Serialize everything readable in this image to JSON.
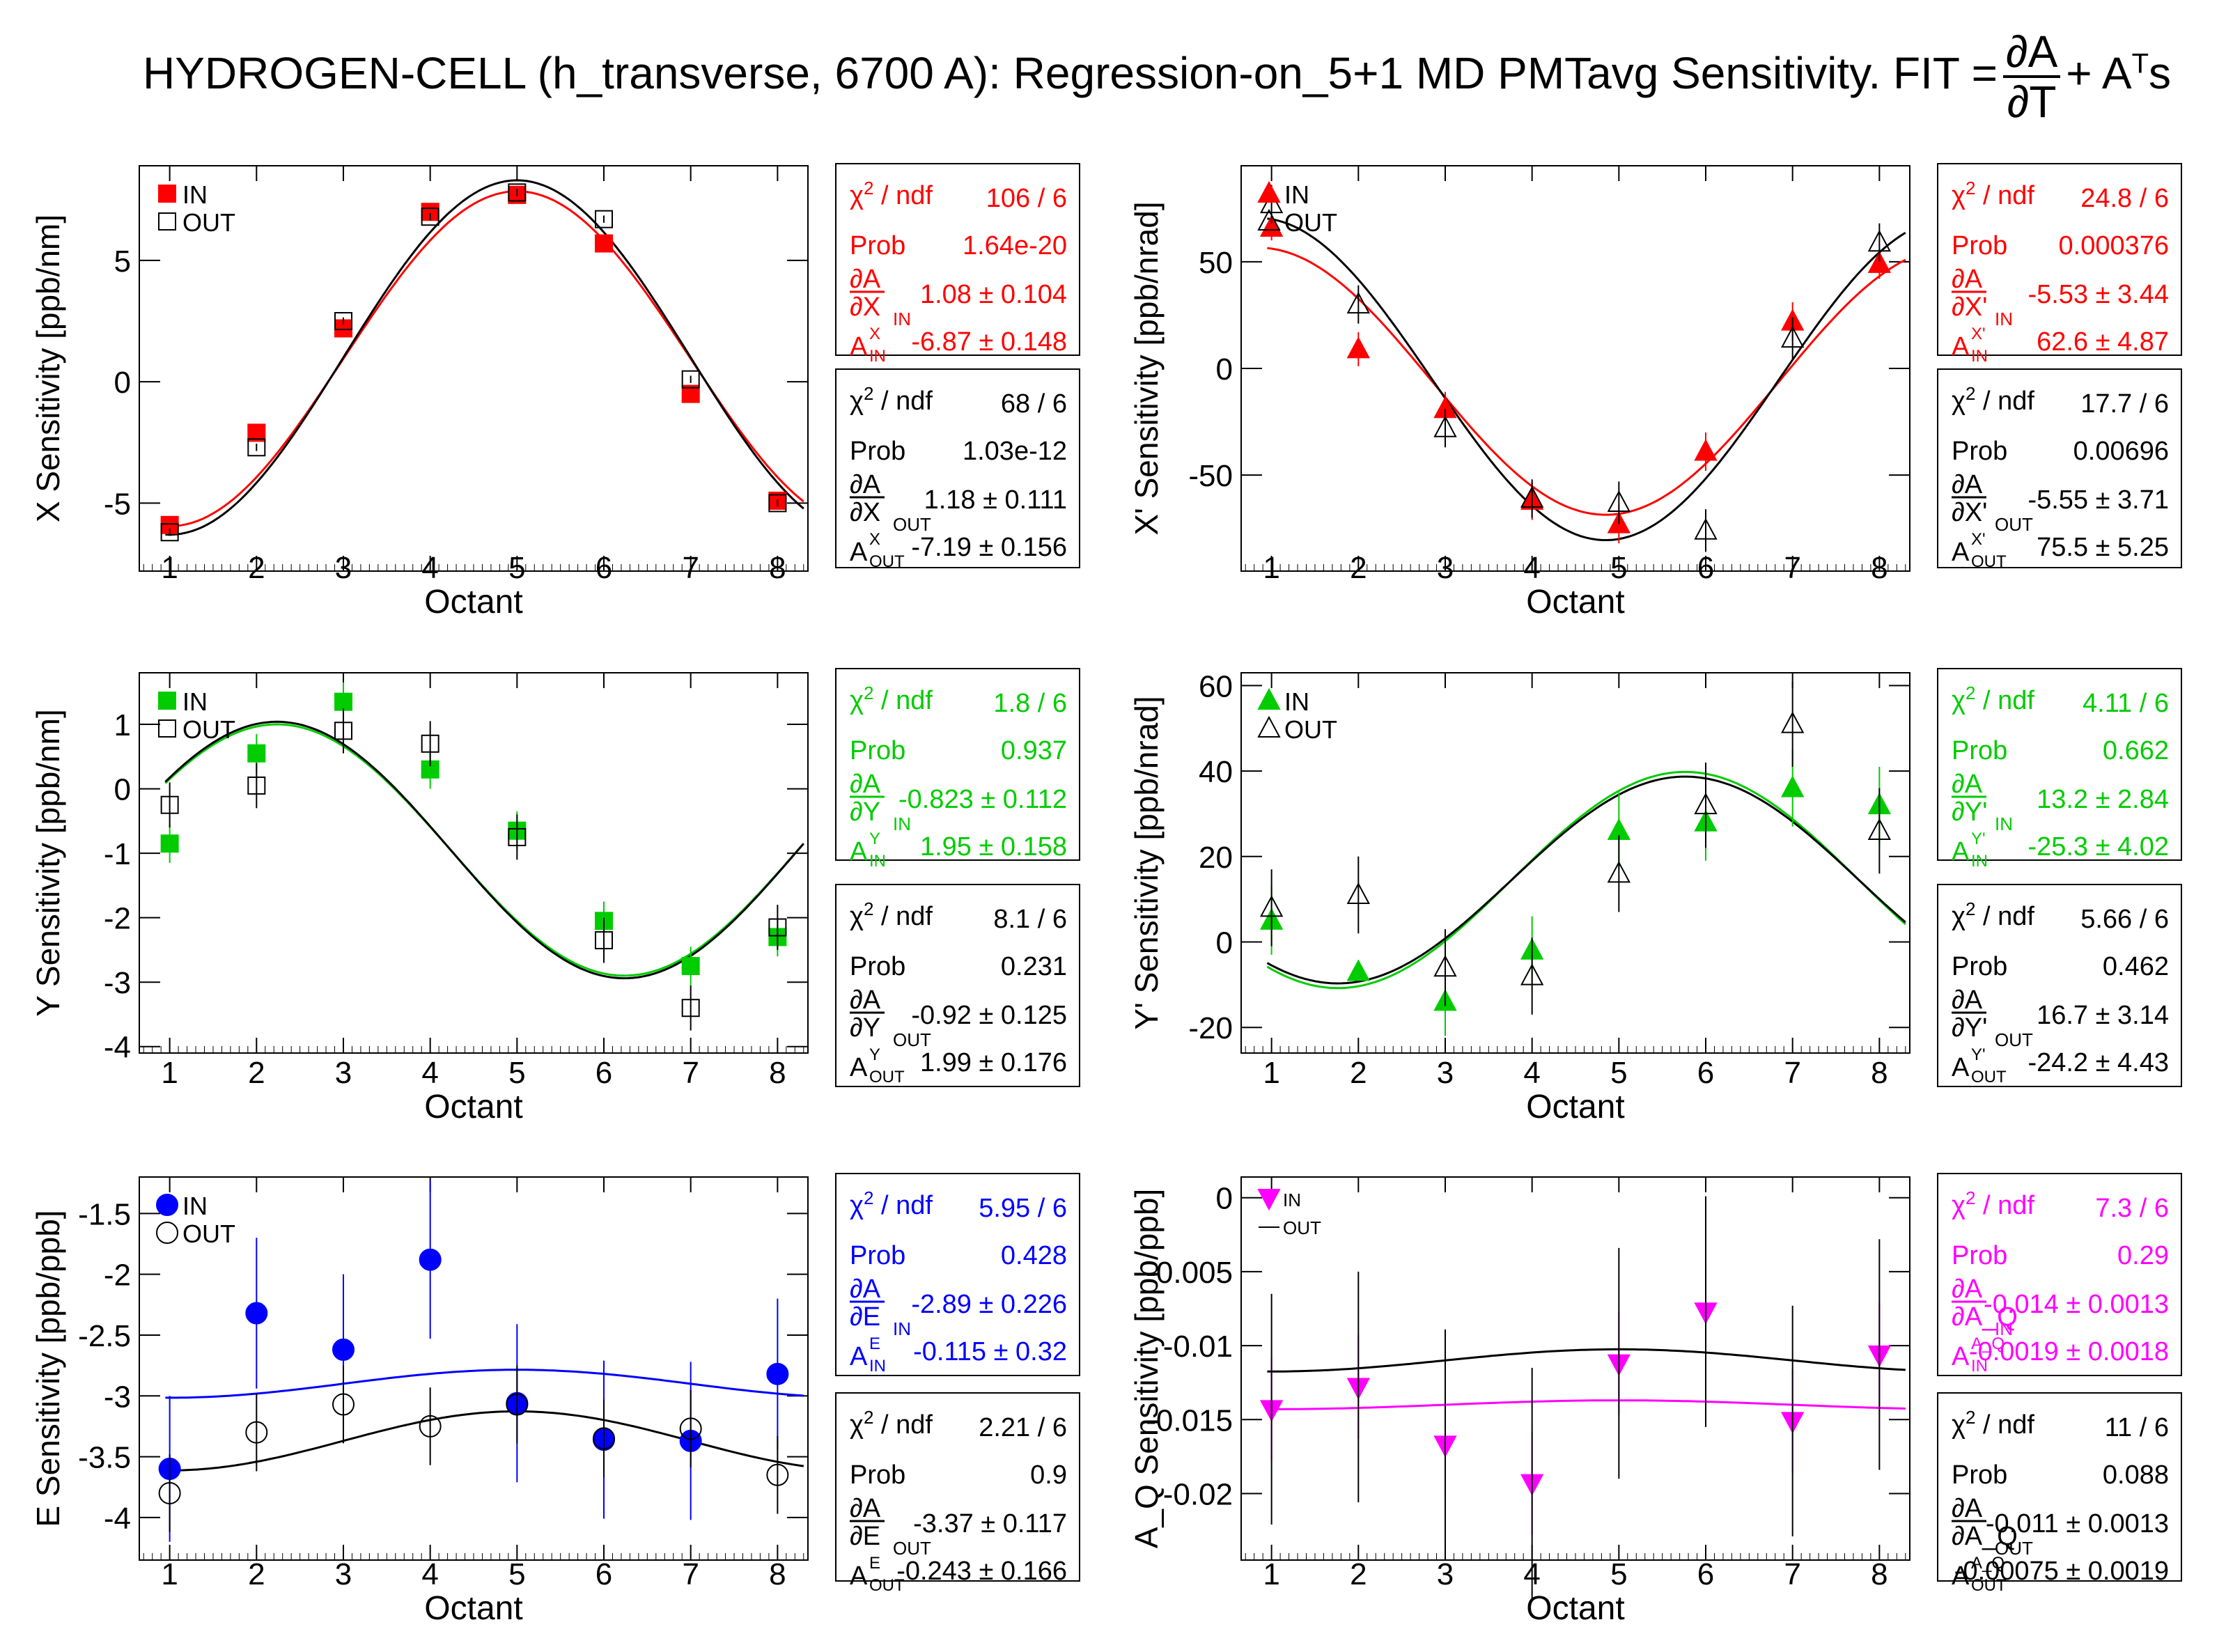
{
  "page_title": {
    "prefix": "HYDROGEN-CELL (h_transverse, 6700 A): Regression-on_5+1 MD PMTavg Sensitivity. FIT =",
    "frac_num": "∂A",
    "frac_den": "∂T",
    "tail": "+ A",
    "tail_sup": "T",
    "tail_end": "s"
  },
  "colors": {
    "red": "#ff0000",
    "black": "#000000",
    "green": "#00cc00",
    "blue": "#0000ff",
    "magenta": "#ff00ff"
  },
  "chart_data": [
    {
      "type": "scatter",
      "xlabel": "Octant",
      "ylabel": "X Sensitivity [ppb/nm]",
      "x_ticks": [
        "1",
        "2",
        "3",
        "4",
        "5",
        "6",
        "7",
        "8"
      ],
      "ylim": [
        -7.8,
        8.9
      ],
      "y_ticks": [
        -5,
        0,
        5
      ],
      "in_color": "red",
      "marker": "square",
      "out_style": "square",
      "legend": {
        "in": "IN",
        "out": "OUT"
      },
      "series": [
        {
          "name": "IN",
          "x": [
            1,
            2,
            3,
            4,
            5,
            6,
            7,
            8
          ],
          "y": [
            -5.9,
            -2.1,
            2.2,
            7.0,
            7.7,
            5.7,
            -0.5,
            -4.9
          ],
          "err": [
            0.15,
            0.15,
            0.15,
            0.15,
            0.15,
            0.15,
            0.15,
            0.15
          ]
        },
        {
          "name": "OUT",
          "x": [
            1,
            2,
            3,
            4,
            5,
            6,
            7,
            8
          ],
          "y": [
            -6.2,
            -2.7,
            2.5,
            6.8,
            7.8,
            6.7,
            0.1,
            -5.0
          ],
          "err": [
            0.15,
            0.15,
            0.15,
            0.15,
            0.15,
            0.15,
            0.15,
            0.15
          ]
        }
      ],
      "fit": {
        "in": {
          "const": -6.87,
          "amp": 1.08
        },
        "out": {
          "const": -7.19,
          "amp": 1.18
        }
      },
      "stats": {
        "in": {
          "chi2_label": "χ² / ndf",
          "chi2": "106 / 6",
          "prob_label": "Prob",
          "prob": "1.64e-20",
          "d_label": "∂A/∂X_IN",
          "d": "1.08 ± 0.104",
          "a_label": "A^X_IN",
          "a": "-6.87 ± 0.148"
        },
        "out": {
          "chi2_label": "χ² / ndf",
          "chi2": "68 / 6",
          "prob_label": "Prob",
          "prob": "1.03e-12",
          "d_label": "∂A/∂X_OUT",
          "d": "1.18 ± 0.111",
          "a_label": "A^X_OUT",
          "a": "-7.19 ± 0.156"
        }
      }
    },
    {
      "type": "scatter",
      "xlabel": "Octant",
      "ylabel": "X' Sensitivity [ppb/nrad]",
      "x_ticks": [
        "1",
        "2",
        "3",
        "4",
        "5",
        "6",
        "7",
        "8"
      ],
      "ylim": [
        -95,
        95
      ],
      "y_ticks": [
        -50,
        0,
        50
      ],
      "in_color": "red",
      "marker": "triangle-up",
      "out_style": "triangle-up",
      "legend": {
        "in": "IN",
        "out": "OUT"
      },
      "series": [
        {
          "name": "IN",
          "x": [
            1,
            2,
            3,
            4,
            5,
            6,
            7,
            8
          ],
          "y": [
            66,
            9,
            -19,
            -62,
            -73,
            -39,
            22,
            49
          ],
          "err": [
            6,
            8,
            8,
            9,
            9,
            9,
            9,
            7
          ]
        },
        {
          "name": "OUT",
          "x": [
            1,
            2,
            3,
            4,
            5,
            6,
            7,
            8
          ],
          "y": [
            77,
            30,
            -28,
            -61,
            -63,
            -76,
            14,
            59
          ],
          "err": [
            9,
            9,
            9,
            9,
            10,
            10,
            10,
            9
          ]
        }
      ],
      "fit": {
        "in": {
          "const": 62.6,
          "amp": -5.53
        },
        "out": {
          "const": 75.5,
          "amp": -5.55
        }
      },
      "stats": {
        "in": {
          "chi2_label": "χ² / ndf",
          "chi2": "24.8 / 6",
          "prob_label": "Prob",
          "prob": "0.000376",
          "d_label": "∂A/∂X'_IN",
          "d": "-5.53 ± 3.44",
          "a_label": "A^X'_IN",
          "a": "62.6 ± 4.87"
        },
        "out": {
          "chi2_label": "χ² / ndf",
          "chi2": "17.7 / 6",
          "prob_label": "Prob",
          "prob": "0.00696",
          "d_label": "∂A/∂X'_OUT",
          "d": "-5.55 ± 3.71",
          "a_label": "A^X'_OUT",
          "a": "75.5 ± 5.25"
        }
      }
    },
    {
      "type": "scatter",
      "xlabel": "Octant",
      "ylabel": "Y Sensitivity [ppb/nm]",
      "x_ticks": [
        "1",
        "2",
        "3",
        "4",
        "5",
        "6",
        "7",
        "8"
      ],
      "ylim": [
        -4.1,
        1.8
      ],
      "y_ticks": [
        -4,
        -3,
        -2,
        -1,
        0,
        1
      ],
      "in_color": "green",
      "marker": "square",
      "out_style": "square",
      "legend": {
        "in": "IN",
        "out": "OUT"
      },
      "series": [
        {
          "name": "IN",
          "x": [
            1,
            2,
            3,
            4,
            5,
            6,
            7,
            8
          ],
          "y": [
            -0.85,
            0.55,
            1.35,
            0.3,
            -0.65,
            -2.05,
            -2.75,
            -2.3
          ],
          "err": [
            0.3,
            0.3,
            0.3,
            0.3,
            0.3,
            0.3,
            0.3,
            0.3
          ]
        },
        {
          "name": "OUT",
          "x": [
            1,
            2,
            3,
            4,
            5,
            6,
            7,
            8
          ],
          "y": [
            -0.25,
            0.05,
            0.9,
            0.7,
            -0.75,
            -2.35,
            -3.4,
            -2.15
          ],
          "err": [
            0.35,
            0.35,
            0.35,
            0.35,
            0.35,
            0.35,
            0.35,
            0.35
          ]
        }
      ],
      "fit": {
        "in": {
          "const": 1.95,
          "amp": -0.823
        },
        "out": {
          "const": 1.99,
          "amp": -0.92
        }
      },
      "stats": {
        "in": {
          "chi2_label": "χ² / ndf",
          "chi2": "1.8 / 6",
          "prob_label": "Prob",
          "prob": "0.937",
          "d_label": "∂A/∂Y_IN",
          "d": "-0.823 ± 0.112",
          "a_label": "A^Y_IN",
          "a": "1.95 ± 0.158"
        },
        "out": {
          "chi2_label": "χ² / ndf",
          "chi2": "8.1 / 6",
          "prob_label": "Prob",
          "prob": "0.231",
          "d_label": "∂A/∂Y_OUT",
          "d": "-0.92 ± 0.125",
          "a_label": "A^Y_OUT",
          "a": "1.99 ± 0.176"
        }
      }
    },
    {
      "type": "scatter",
      "xlabel": "Octant",
      "ylabel": "Y' Sensitivity [ppb/nrad]",
      "x_ticks": [
        "1",
        "2",
        "3",
        "4",
        "5",
        "6",
        "7",
        "8"
      ],
      "ylim": [
        -26,
        63
      ],
      "y_ticks": [
        -20,
        0,
        20,
        40,
        60
      ],
      "in_color": "green",
      "marker": "triangle-up",
      "out_style": "triangle-up",
      "legend": {
        "in": "IN",
        "out": "OUT"
      },
      "series": [
        {
          "name": "IN",
          "x": [
            1,
            2,
            3,
            4,
            5,
            6,
            7,
            8
          ],
          "y": [
            5,
            -7,
            -14,
            -2,
            26,
            28,
            36,
            32
          ],
          "err": [
            8,
            0,
            8,
            8,
            9,
            9,
            9,
            9
          ]
        },
        {
          "name": "OUT",
          "x": [
            1,
            2,
            3,
            4,
            5,
            6,
            7,
            8
          ],
          "y": [
            8,
            11,
            -6,
            -8,
            16,
            32,
            51,
            26
          ],
          "err": [
            9,
            9,
            9,
            9,
            9,
            10,
            10,
            10
          ]
        }
      ],
      "fit": {
        "in": {
          "const": -25.3,
          "amp": 13.2
        },
        "out": {
          "const": -24.2,
          "amp": 16.7
        }
      },
      "stats": {
        "in": {
          "chi2_label": "χ² / ndf",
          "chi2": "4.11 / 6",
          "prob_label": "Prob",
          "prob": "0.662",
          "d_label": "∂A/∂Y'_IN",
          "d": "13.2 ± 2.84",
          "a_label": "A^Y'_IN",
          "a": "-25.3 ± 4.02"
        },
        "out": {
          "chi2_label": "χ² / ndf",
          "chi2": "5.66 / 6",
          "prob_label": "Prob",
          "prob": "0.462",
          "d_label": "∂A/∂Y'_OUT",
          "d": "16.7 ± 3.14",
          "a_label": "A^Y'_OUT",
          "a": "-24.2 ± 4.43"
        }
      }
    },
    {
      "type": "scatter",
      "xlabel": "Octant",
      "ylabel": "E Sensitivity [ppb/ppb]",
      "x_ticks": [
        "1",
        "2",
        "3",
        "4",
        "5",
        "6",
        "7",
        "8"
      ],
      "ylim": [
        -4.35,
        -1.2
      ],
      "y_ticks": [
        -4,
        -3.5,
        -3,
        -2.5,
        -2,
        -1.5
      ],
      "in_color": "blue",
      "marker": "circle",
      "out_style": "circle",
      "legend": {
        "in": "IN",
        "out": "OUT"
      },
      "series": [
        {
          "name": "IN",
          "x": [
            1,
            2,
            3,
            4,
            5,
            6,
            7,
            8
          ],
          "y": [
            -3.6,
            -2.32,
            -2.62,
            -1.88,
            -3.06,
            -3.36,
            -3.37,
            -2.82
          ],
          "err": [
            0.6,
            0.62,
            0.62,
            0.65,
            0.65,
            0.65,
            0.65,
            0.62
          ]
        },
        {
          "name": "OUT",
          "x": [
            1,
            2,
            3,
            4,
            5,
            6,
            7,
            8
          ],
          "y": [
            -3.8,
            -3.3,
            -3.07,
            -3.25,
            -3.07,
            -3.35,
            -3.27,
            -3.65
          ],
          "err": [
            0.32,
            0.32,
            0.32,
            0.32,
            0.32,
            0.32,
            0.32,
            0.32
          ]
        }
      ],
      "fit": {
        "in": {
          "const": -0.115,
          "amp": -2.89
        },
        "out": {
          "const": -0.243,
          "amp": -3.37
        }
      },
      "stats": {
        "in": {
          "chi2_label": "χ² / ndf",
          "chi2": "5.95 / 6",
          "prob_label": "Prob",
          "prob": "0.428",
          "d_label": "∂A/∂E_IN",
          "d": "-2.89 ± 0.226",
          "a_label": "A^E_IN",
          "a": "-0.115 ± 0.32"
        },
        "out": {
          "chi2_label": "χ² / ndf",
          "chi2": "2.21 / 6",
          "prob_label": "Prob",
          "prob": "0.9",
          "d_label": "∂A/∂E_OUT",
          "d": "-3.37 ± 0.117",
          "a_label": "A^E_OUT",
          "a": "-0.243 ± 0.166"
        }
      }
    },
    {
      "type": "scatter",
      "xlabel": "Octant",
      "ylabel": "A_Q Sensitivity [ppb/ppb]",
      "x_ticks": [
        "1",
        "2",
        "3",
        "4",
        "5",
        "6",
        "7",
        "8"
      ],
      "ylim": [
        -0.0245,
        0.0014
      ],
      "y_ticks": [
        -0.02,
        -0.015,
        -0.01,
        -0.005,
        0
      ],
      "in_color": "magenta",
      "marker": "triangle-down",
      "out_style": "none",
      "legend": {
        "in": "IN",
        "out": "OUT"
      },
      "series": [
        {
          "name": "IN",
          "x": [
            1,
            2,
            3,
            4,
            5,
            6,
            7,
            8
          ],
          "y": [
            -0.0143,
            -0.0128,
            -0.0167,
            -0.0193,
            -0.0112,
            -0.0077,
            -0.0151,
            -0.0106
          ],
          "err": [
            0.0035,
            0.0035,
            0.0035,
            0.0035,
            0.0035,
            0.0035,
            0.0035,
            0.0035
          ]
        },
        {
          "name": "OUT",
          "x": [
            1,
            2,
            3,
            4,
            5,
            6,
            7,
            8
          ],
          "y": [
            -0.0143,
            -0.0128,
            -0.0167,
            -0.0193,
            -0.0112,
            -0.0077,
            -0.0151,
            -0.0106
          ],
          "err": [
            0.0078,
            0.0078,
            0.0078,
            0.0078,
            0.0078,
            0.0078,
            0.0078,
            0.0078
          ]
        }
      ],
      "fit": {
        "in": {
          "const": -0.0019,
          "amp": -0.014
        },
        "out": {
          "const": -0.00075,
          "amp": -0.011
        }
      },
      "stats": {
        "in": {
          "chi2_label": "χ² / ndf",
          "chi2": "7.3 / 6",
          "prob_label": "Prob",
          "prob": "0.29",
          "d_label": "∂A/∂A_Q_IN",
          "d": "-0.014 ± 0.0013",
          "a_label": "A^A_Q_IN",
          "a": "-0.0019 ± 0.0018"
        },
        "out": {
          "chi2_label": "χ² / ndf",
          "chi2": "11 / 6",
          "prob_label": "Prob",
          "prob": "0.088",
          "d_label": "∂A/∂A_Q_OUT",
          "d": "-0.011 ± 0.0013",
          "a_label": "A^A_Q_OUT",
          "a": "-0.00075 ± 0.0019"
        }
      }
    }
  ]
}
